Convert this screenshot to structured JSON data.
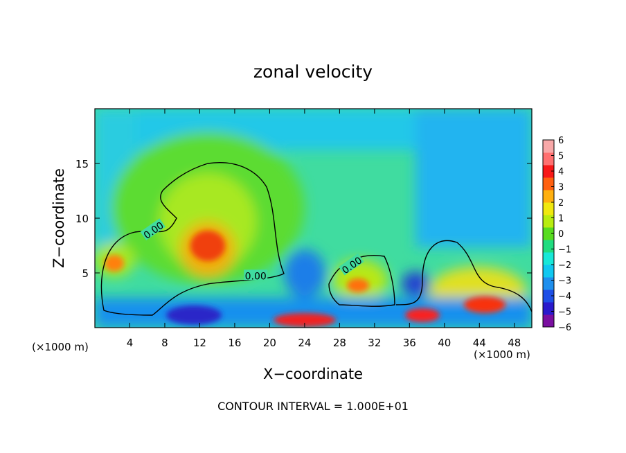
{
  "chart_data": {
    "type": "heatmap",
    "title": "zonal velocity",
    "xlabel": "X−coordinate",
    "ylabel": "Z−coordinate",
    "x_unit_left": "(×1000 m)",
    "x_unit_right": "(×1000 m)",
    "footer": "CONTOUR INTERVAL = 1.000E+01",
    "xlim": [
      0,
      50
    ],
    "ylim": [
      0,
      20
    ],
    "xticks": [
      4,
      8,
      12,
      16,
      20,
      24,
      28,
      32,
      36,
      40,
      44,
      48
    ],
    "yticks": [
      5,
      10,
      15
    ],
    "colorbar": {
      "range": [
        -6,
        6
      ],
      "ticks": [
        "6",
        "5",
        "4",
        "3",
        "2",
        "1",
        "0",
        "−1",
        "−2",
        "−3",
        "−4",
        "−5",
        "−6"
      ],
      "colors": [
        "#7a0fa0",
        "#2a1acc",
        "#1e4fe6",
        "#1e8fee",
        "#10c8f0",
        "#18e8d8",
        "#20dc80",
        "#58dc20",
        "#b8ec10",
        "#f0e810",
        "#ffb010",
        "#ff6010",
        "#f81818",
        "#ff7070",
        "#f8a8a8"
      ]
    },
    "contour_labels": [
      {
        "text": "0.00",
        "x": 6.8,
        "y": 8.8
      },
      {
        "text": "0.00",
        "x": 18.4,
        "y": 4.6
      },
      {
        "text": "0.00",
        "x": 29.5,
        "y": 5.6
      }
    ]
  }
}
